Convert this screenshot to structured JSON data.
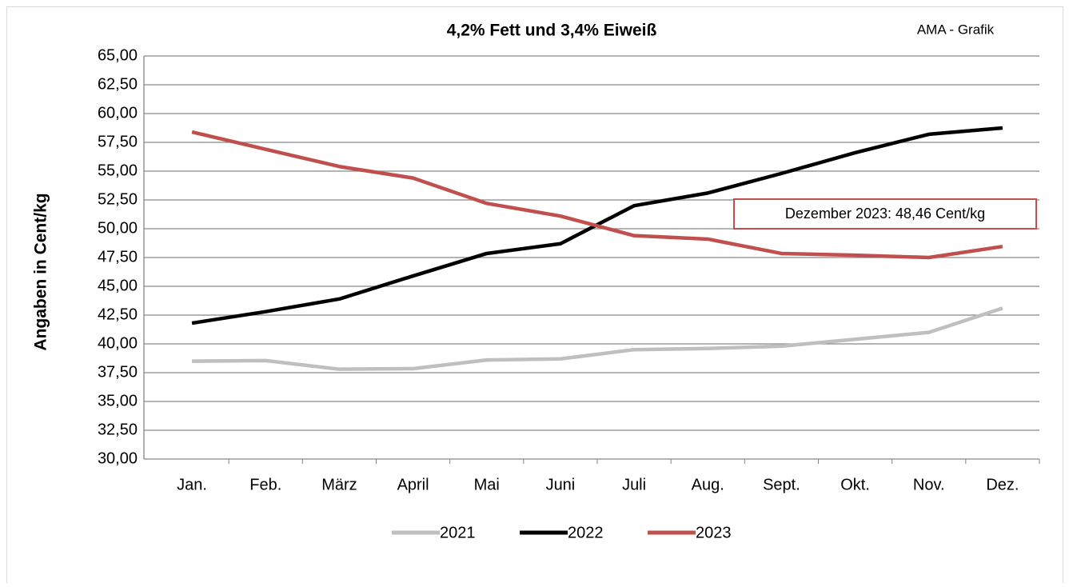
{
  "chart_data": {
    "type": "line",
    "title": "4,2% Fett und 3,4% Eiweiß",
    "source": "AMA - Grafik",
    "y_label": "Angaben in Cent/kg",
    "annotation": "Dezember 2023: 48,46 Cent/kg",
    "categories": [
      "Jan.",
      "Feb.",
      "März",
      "April",
      "Mai",
      "Juni",
      "Juli",
      "Aug.",
      "Sept.",
      "Okt.",
      "Nov.",
      "Dez."
    ],
    "series": [
      {
        "name": "2021",
        "color": "#bfbfbf",
        "values": [
          38.5,
          38.55,
          37.8,
          37.85,
          38.6,
          38.7,
          39.5,
          39.6,
          39.8,
          40.4,
          41.0,
          43.1
        ]
      },
      {
        "name": "2022",
        "color": "#000000",
        "values": [
          41.8,
          42.8,
          43.9,
          45.9,
          47.85,
          48.7,
          52.0,
          53.1,
          54.8,
          56.6,
          58.2,
          58.75
        ]
      },
      {
        "name": "2023",
        "color": "#c0504d",
        "values": [
          58.4,
          56.9,
          55.4,
          54.4,
          52.2,
          51.1,
          49.4,
          49.1,
          47.85,
          47.7,
          47.5,
          48.46
        ]
      }
    ],
    "ylim": [
      30,
      65
    ],
    "yticks": [
      {
        "value": 30,
        "label": "30,00"
      },
      {
        "value": 32.5,
        "label": "32,50"
      },
      {
        "value": 35,
        "label": "35,00"
      },
      {
        "value": 37.5,
        "label": "37,50"
      },
      {
        "value": 40,
        "label": "40,00"
      },
      {
        "value": 42.5,
        "label": "42,50"
      },
      {
        "value": 45,
        "label": "45,00"
      },
      {
        "value": 47.5,
        "label": "47,50"
      },
      {
        "value": 50,
        "label": "50,00"
      },
      {
        "value": 52.5,
        "label": "52,50"
      },
      {
        "value": 55,
        "label": "55,00"
      },
      {
        "value": 57.5,
        "label": "57,50"
      },
      {
        "value": 60,
        "label": "60,00"
      },
      {
        "value": 62.5,
        "label": "62,50"
      },
      {
        "value": 65,
        "label": "65,00"
      }
    ],
    "grid": true,
    "legend": "bottom"
  }
}
